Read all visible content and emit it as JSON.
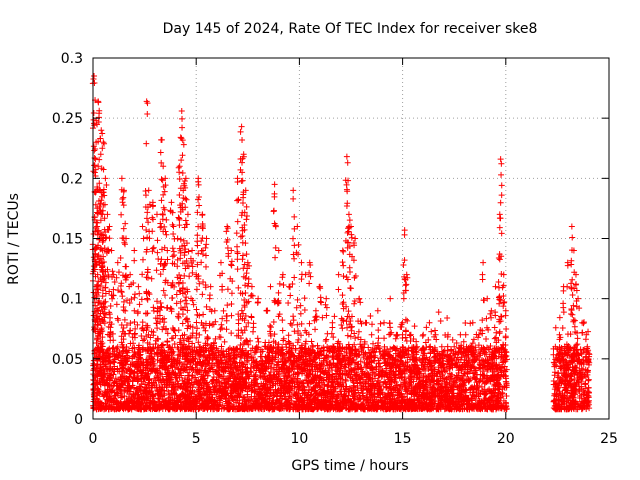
{
  "chart_data": {
    "type": "scatter",
    "title": "Day 145 of 2024, Rate Of TEC Index for receiver ske8",
    "xlabel": "GPS time / hours",
    "ylabel": "ROTI / TECUs",
    "xlim": [
      0,
      25
    ],
    "ylim": [
      0,
      0.3
    ],
    "xticks": [
      0,
      5,
      10,
      15,
      20,
      25
    ],
    "xtick_labels": [
      "0",
      "5",
      "10",
      "15",
      "20",
      "25"
    ],
    "yticks": [
      0,
      0.05,
      0.1,
      0.15,
      0.2,
      0.25,
      0.3
    ],
    "ytick_labels": [
      "0",
      "0.05",
      "0.1",
      "0.15",
      "0.2",
      "0.25",
      "0.3"
    ],
    "grid": true,
    "marker": "plus",
    "marker_color": "#ff0000",
    "series": [
      {
        "name": "ROTI",
        "color": "#ff0000",
        "points": [
          [
            0.05,
            0.285
          ],
          [
            0.1,
            0.265
          ],
          [
            0.15,
            0.23
          ],
          [
            0.25,
            0.21
          ],
          [
            0.35,
            0.19
          ],
          [
            0.45,
            0.17
          ],
          [
            0.2,
            0.16
          ],
          [
            0.5,
            0.15
          ],
          [
            0.25,
            0.264
          ],
          [
            0.4,
            0.24
          ],
          [
            0.5,
            0.23
          ],
          [
            0.6,
            0.2
          ],
          [
            0.7,
            0.17
          ],
          [
            0.8,
            0.16
          ],
          [
            0.9,
            0.14
          ],
          [
            1.0,
            0.12
          ],
          [
            1.2,
            0.13
          ],
          [
            1.4,
            0.2
          ],
          [
            1.5,
            0.19
          ],
          [
            1.6,
            0.15
          ],
          [
            1.8,
            0.12
          ],
          [
            2.0,
            0.14
          ],
          [
            2.2,
            0.11
          ],
          [
            2.4,
            0.16
          ],
          [
            2.6,
            0.264
          ],
          [
            2.7,
            0.19
          ],
          [
            2.9,
            0.18
          ],
          [
            3.1,
            0.17
          ],
          [
            3.3,
            0.232
          ],
          [
            3.4,
            0.21
          ],
          [
            3.5,
            0.2
          ],
          [
            3.6,
            0.14
          ],
          [
            3.8,
            0.18
          ],
          [
            3.9,
            0.16
          ],
          [
            4.1,
            0.15
          ],
          [
            4.2,
            0.21
          ],
          [
            4.3,
            0.256
          ],
          [
            4.4,
            0.228
          ],
          [
            4.5,
            0.2
          ],
          [
            4.6,
            0.17
          ],
          [
            4.8,
            0.14
          ],
          [
            5.0,
            0.12
          ],
          [
            5.1,
            0.2
          ],
          [
            5.3,
            0.17
          ],
          [
            5.5,
            0.15
          ],
          [
            5.7,
            0.11
          ],
          [
            5.9,
            0.09
          ],
          [
            6.2,
            0.13
          ],
          [
            6.5,
            0.16
          ],
          [
            6.7,
            0.14
          ],
          [
            7.0,
            0.2
          ],
          [
            7.2,
            0.243
          ],
          [
            7.3,
            0.22
          ],
          [
            7.4,
            0.19
          ],
          [
            7.5,
            0.13
          ],
          [
            7.7,
            0.11
          ],
          [
            8.0,
            0.1
          ],
          [
            8.4,
            0.09
          ],
          [
            8.6,
            0.11
          ],
          [
            8.8,
            0.195
          ],
          [
            9.0,
            0.14
          ],
          [
            9.2,
            0.12
          ],
          [
            9.5,
            0.11
          ],
          [
            9.7,
            0.19
          ],
          [
            9.9,
            0.16
          ],
          [
            10.1,
            0.13
          ],
          [
            10.3,
            0.12
          ],
          [
            10.5,
            0.13
          ],
          [
            10.8,
            0.09
          ],
          [
            11.0,
            0.11
          ],
          [
            11.3,
            0.1
          ],
          [
            11.6,
            0.08
          ],
          [
            11.9,
            0.12
          ],
          [
            12.1,
            0.14
          ],
          [
            12.3,
            0.218
          ],
          [
            12.4,
            0.17
          ],
          [
            12.5,
            0.16
          ],
          [
            12.7,
            0.15
          ],
          [
            12.9,
            0.1
          ],
          [
            13.2,
            0.08
          ],
          [
            13.5,
            0.07
          ],
          [
            13.8,
            0.09
          ],
          [
            14.1,
            0.08
          ],
          [
            14.4,
            0.1
          ],
          [
            14.7,
            0.07
          ],
          [
            15.0,
            0.08
          ],
          [
            15.1,
            0.157
          ],
          [
            15.2,
            0.12
          ],
          [
            15.4,
            0.07
          ],
          [
            15.7,
            0.06
          ],
          [
            16.0,
            0.07
          ],
          [
            16.3,
            0.08
          ],
          [
            16.6,
            0.07
          ],
          [
            16.9,
            0.06
          ],
          [
            17.2,
            0.07
          ],
          [
            17.5,
            0.06
          ],
          [
            17.8,
            0.07
          ],
          [
            18.1,
            0.06
          ],
          [
            18.4,
            0.08
          ],
          [
            18.7,
            0.07
          ],
          [
            18.9,
            0.13
          ],
          [
            19.1,
            0.1
          ],
          [
            19.3,
            0.09
          ],
          [
            19.5,
            0.11
          ],
          [
            19.7,
            0.137
          ],
          [
            19.75,
            0.216
          ],
          [
            19.9,
            0.12
          ],
          [
            20.0,
            0.09
          ],
          [
            22.4,
            0.06
          ],
          [
            22.6,
            0.07
          ],
          [
            22.8,
            0.11
          ],
          [
            23.0,
            0.13
          ],
          [
            23.2,
            0.16
          ],
          [
            23.3,
            0.14
          ],
          [
            23.4,
            0.12
          ],
          [
            23.5,
            0.1
          ],
          [
            23.7,
            0.08
          ],
          [
            23.9,
            0.07
          ],
          [
            24.0,
            0.05
          ]
        ],
        "background_band": {
          "segments": [
            [
              0,
              20.05
            ],
            [
              22.3,
              24.05
            ]
          ],
          "baseline": 0.008,
          "typical_top": 0.06,
          "note": "dense cluster of points between baseline and typical top across both segments"
        }
      }
    ]
  }
}
